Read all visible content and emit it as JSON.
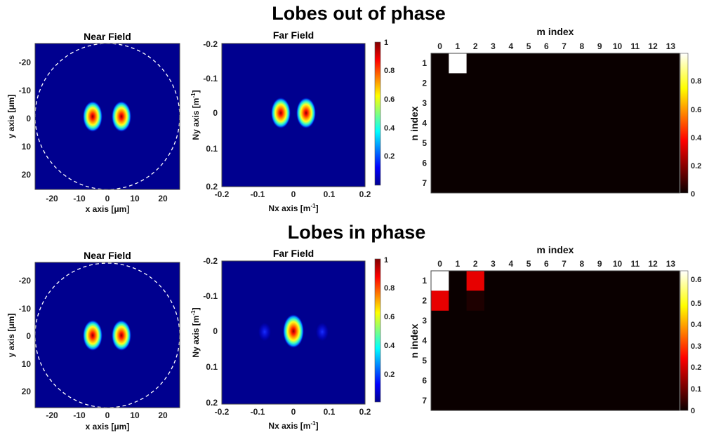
{
  "sections": [
    {
      "title": "Lobes out of phase",
      "near": {
        "title": "Near Field",
        "xlabel": "x axis [μm]",
        "ylabel": "y axis [μm]",
        "xticks": [
          "-20",
          "-10",
          "0",
          "10",
          "20"
        ],
        "yticks": [
          "-20",
          "-10",
          "0",
          "10",
          "20"
        ]
      },
      "far": {
        "title": "Far Field",
        "xlabel": "Nx axis [m",
        "ylabel": "Ny axis [m",
        "unit_sup": "-1",
        "unit_close": "]",
        "xticks": [
          "-0.2",
          "-0.1",
          "0",
          "0.1",
          "0.2"
        ],
        "yticks": [
          "-0.2",
          "-0.1",
          "0",
          "0.1",
          "0.2"
        ],
        "cbar_ticks": [
          "1",
          "0.8",
          "0.6",
          "0.4",
          "0.2"
        ]
      },
      "matrix": {
        "xlabel": "m index",
        "ylabel": "n index",
        "m_ticks": [
          "0",
          "1",
          "2",
          "3",
          "4",
          "5",
          "6",
          "7",
          "8",
          "9",
          "10",
          "11",
          "12",
          "13"
        ],
        "n_ticks": [
          "1",
          "2",
          "3",
          "4",
          "5",
          "6",
          "7"
        ],
        "cbar_ticks": [
          "0.8",
          "0.6",
          "0.4",
          "0.2",
          "0"
        ]
      }
    },
    {
      "title": "Lobes in phase",
      "near": {
        "title": "Near Field",
        "xlabel": "x axis [μm]",
        "ylabel": "y axis [μm]",
        "xticks": [
          "-20",
          "-10",
          "0",
          "10",
          "20"
        ],
        "yticks": [
          "-20",
          "-10",
          "0",
          "10",
          "20"
        ]
      },
      "far": {
        "title": "Far Field",
        "xlabel": "Nx axis [m",
        "ylabel": "Ny axis [m",
        "unit_sup": "-1",
        "unit_close": "]",
        "xticks": [
          "-0.2",
          "-0.1",
          "0",
          "0.1",
          "0.2"
        ],
        "yticks": [
          "-0.2",
          "-0.1",
          "0",
          "0.1",
          "0.2"
        ],
        "cbar_ticks": [
          "1",
          "0.8",
          "0.6",
          "0.4",
          "0.2"
        ]
      },
      "matrix": {
        "xlabel": "m index",
        "ylabel": "n index",
        "m_ticks": [
          "0",
          "1",
          "2",
          "3",
          "4",
          "5",
          "6",
          "7",
          "8",
          "9",
          "10",
          "11",
          "12",
          "13"
        ],
        "n_ticks": [
          "1",
          "2",
          "3",
          "4",
          "5",
          "6",
          "7"
        ],
        "cbar_ticks": [
          "0.6",
          "0.5",
          "0.4",
          "0.3",
          "0.2",
          "0.1",
          "0"
        ]
      }
    }
  ],
  "chart_data": [
    {
      "type": "heatmap",
      "title": "Near Field",
      "xlabel": "x axis [μm]",
      "ylabel": "y axis [μm]",
      "xlim": [
        -26,
        26
      ],
      "ylim": [
        -26,
        26
      ],
      "y_reversed": true,
      "colormap": "jet",
      "dashed_circle_radius_um": 25,
      "lobes": [
        {
          "x": -4.5,
          "y": 0,
          "sigma_x": 2.5,
          "sigma_y": 4.0,
          "peak": 1
        },
        {
          "x": 4.5,
          "y": 0,
          "sigma_x": 2.5,
          "sigma_y": 4.0,
          "peak": 1
        }
      ]
    },
    {
      "type": "heatmap",
      "title": "Far Field",
      "xlabel": "Nx axis [m^-1]",
      "ylabel": "Ny axis [m^-1]",
      "xlim": [
        -0.2,
        0.2
      ],
      "ylim": [
        -0.2,
        0.2
      ],
      "y_reversed": true,
      "colormap": "jet",
      "colorbar_range": [
        0,
        1
      ],
      "lobes": [
        {
          "x": -0.035,
          "y": 0,
          "sigma_x": 0.018,
          "sigma_y": 0.028,
          "peak": 1
        },
        {
          "x": 0.035,
          "y": 0,
          "sigma_x": 0.018,
          "sigma_y": 0.028,
          "peak": 1
        }
      ]
    },
    {
      "type": "heatmap",
      "xlabel": "m index",
      "ylabel": "n index",
      "x": [
        0,
        1,
        2,
        3,
        4,
        5,
        6,
        7,
        8,
        9,
        10,
        11,
        12,
        13
      ],
      "y": [
        1,
        2,
        3,
        4,
        5,
        6,
        7
      ],
      "colormap": "hot",
      "colorbar_range": [
        0,
        1
      ],
      "cells": [
        {
          "m": 1,
          "n": 1,
          "value": 1.0
        }
      ]
    },
    {
      "type": "heatmap",
      "title": "Near Field",
      "xlabel": "x axis [μm]",
      "ylabel": "y axis [μm]",
      "xlim": [
        -26,
        26
      ],
      "ylim": [
        -26,
        26
      ],
      "y_reversed": true,
      "colormap": "jet",
      "dashed_circle_radius_um": 25,
      "lobes": [
        {
          "x": -4.5,
          "y": 0,
          "sigma_x": 2.5,
          "sigma_y": 4.0,
          "peak": 1
        },
        {
          "x": 4.5,
          "y": 0,
          "sigma_x": 2.5,
          "sigma_y": 4.0,
          "peak": 1
        }
      ]
    },
    {
      "type": "heatmap",
      "title": "Far Field",
      "xlabel": "Nx axis [m^-1]",
      "ylabel": "Ny axis [m^-1]",
      "xlim": [
        -0.2,
        0.2
      ],
      "ylim": [
        -0.2,
        0.2
      ],
      "y_reversed": true,
      "colormap": "jet",
      "colorbar_range": [
        0,
        1
      ],
      "lobes": [
        {
          "x": 0,
          "y": 0,
          "sigma_x": 0.02,
          "sigma_y": 0.03,
          "peak": 1
        },
        {
          "x": -0.08,
          "y": 0,
          "sigma_x": 0.014,
          "sigma_y": 0.02,
          "peak": 0.05
        },
        {
          "x": 0.08,
          "y": 0,
          "sigma_x": 0.014,
          "sigma_y": 0.02,
          "peak": 0.05
        }
      ]
    },
    {
      "type": "heatmap",
      "xlabel": "m index",
      "ylabel": "n index",
      "x": [
        0,
        1,
        2,
        3,
        4,
        5,
        6,
        7,
        8,
        9,
        10,
        11,
        12,
        13
      ],
      "y": [
        1,
        2,
        3,
        4,
        5,
        6,
        7
      ],
      "colormap": "hot",
      "colorbar_range": [
        0,
        0.65
      ],
      "cells": [
        {
          "m": 0,
          "n": 1,
          "value": 0.65
        },
        {
          "m": 2,
          "n": 1,
          "value": 0.22
        },
        {
          "m": 0,
          "n": 2,
          "value": 0.22
        },
        {
          "m": 2,
          "n": 2,
          "value": 0.02
        }
      ]
    }
  ]
}
